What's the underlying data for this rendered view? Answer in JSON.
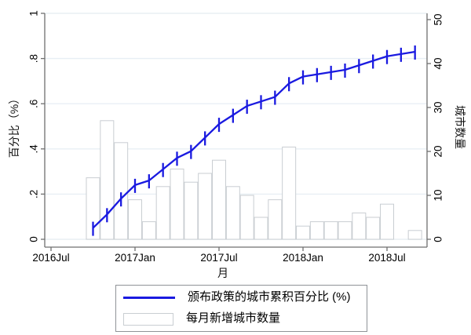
{
  "figure": {
    "background": "#ffffff",
    "axis_color": "#6f6f6f",
    "grid_color": "#e8eff4",
    "line_color": "#1a1ae0",
    "bar_fill": "#ffffff",
    "bar_border": "#c9ced2",
    "left_axis_title": "百分比（%）",
    "right_axis_title": "城市数量",
    "x_axis_title": "月",
    "legend": {
      "line_label": "颁布政策的城市累积百分比 (%)",
      "bar_label": "每月新增城市数量"
    }
  },
  "chart_data": {
    "type": "line+bar",
    "title": "",
    "x": [
      "2016Oct",
      "2016Nov",
      "2016Dec",
      "2017Jan",
      "2017Feb",
      "2017Mar",
      "2017Apr",
      "2017May",
      "2017Jun",
      "2017Jul",
      "2017Aug",
      "2017Sep",
      "2017Oct",
      "2017Nov",
      "2017Dec",
      "2018Jan",
      "2018Feb",
      "2018Mar",
      "2018Apr",
      "2018May",
      "2018Jun",
      "2018Jul",
      "2018Aug",
      "2018Sep"
    ],
    "first_month_offset": 3,
    "x_axis": {
      "title": "月",
      "tick_labels": [
        "2016Jul",
        "2017Jan",
        "2017Jul",
        "2018Jan",
        "2018Jul"
      ],
      "tick_month_offsets": [
        0,
        6,
        12,
        18,
        24
      ]
    },
    "left_y_axis": {
      "title": "百分比（%）",
      "range": [
        0,
        1
      ],
      "ticks": [
        0,
        0.2,
        0.4,
        0.6,
        0.8,
        1
      ],
      "tick_labels": [
        "0",
        ".2",
        ".4",
        ".6",
        ".8",
        "1"
      ],
      "grid": true
    },
    "right_y_axis": {
      "title": "城市数量",
      "range": [
        0,
        50
      ],
      "ticks": [
        0,
        10,
        20,
        30,
        40,
        50
      ],
      "tick_labels": [
        "0",
        "10",
        "20",
        "30",
        "40",
        "50"
      ],
      "grid": false
    },
    "series": [
      {
        "name": "颁布政策的城市累积百分比 (%)",
        "type": "line",
        "axis": "left",
        "color": "#1a1ae0",
        "values": [
          0.05,
          0.11,
          0.18,
          0.24,
          0.26,
          0.31,
          0.36,
          0.39,
          0.45,
          0.51,
          0.55,
          0.59,
          0.61,
          0.63,
          0.69,
          0.72,
          0.73,
          0.74,
          0.75,
          0.77,
          0.79,
          0.81,
          0.82,
          0.83
        ]
      },
      {
        "name": "每月新增城市数量",
        "type": "bar",
        "axis": "right",
        "fill": "#ffffff",
        "border": "#c9ced2",
        "values": [
          14,
          27,
          22,
          9,
          4,
          12,
          16,
          13,
          15,
          18,
          12,
          10,
          5,
          9,
          21,
          3,
          4,
          4,
          4,
          6,
          5,
          8,
          0,
          2
        ]
      }
    ],
    "legend_position": "bottom-center"
  }
}
